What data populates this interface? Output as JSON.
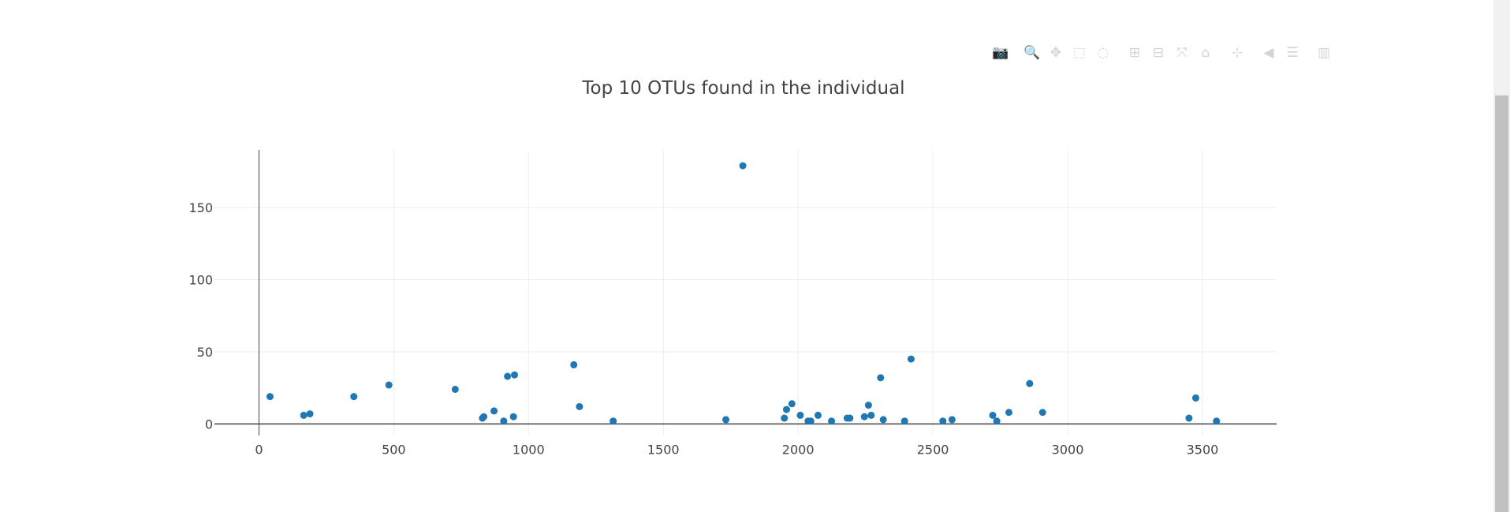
{
  "modebar": {
    "buttons": [
      {
        "icon": "camera-icon",
        "glyph": "📷"
      },
      {
        "icon": "zoom-icon",
        "glyph": "🔍"
      },
      {
        "icon": "pan-icon",
        "glyph": "✥"
      },
      {
        "icon": "box-select-icon",
        "glyph": "⬚"
      },
      {
        "icon": "lasso-select-icon",
        "glyph": "◌"
      },
      {
        "icon": "zoom-in-icon",
        "glyph": "⊞"
      },
      {
        "icon": "zoom-out-icon",
        "glyph": "⊟"
      },
      {
        "icon": "autoscale-icon",
        "glyph": "⤧"
      },
      {
        "icon": "home-icon",
        "glyph": "⌂"
      },
      {
        "icon": "spike-lines-icon",
        "glyph": "⊹"
      },
      {
        "icon": "hover-closest-icon",
        "glyph": "◀"
      },
      {
        "icon": "hover-compare-icon",
        "glyph": "☰"
      },
      {
        "icon": "plotly-logo-icon",
        "glyph": "▥"
      }
    ]
  },
  "colors": {
    "marker": "#1f77b4",
    "grid": "#eeeeee",
    "axis": "#444444",
    "text": "#444444"
  },
  "chart_data": {
    "type": "scatter",
    "title": "Top 10 OTUs found in the individual",
    "xlabel": "",
    "ylabel": "",
    "xlim": [
      -165,
      3775
    ],
    "ylim": [
      -8,
      190
    ],
    "xticks": [
      0,
      500,
      1000,
      1500,
      2000,
      2500,
      3000,
      3500
    ],
    "yticks": [
      0,
      50,
      100,
      150
    ],
    "grid": true,
    "series": [
      {
        "points": [
          [
            41,
            19
          ],
          [
            166,
            6
          ],
          [
            189,
            7
          ],
          [
            352,
            19
          ],
          [
            482,
            27
          ],
          [
            728,
            24
          ],
          [
            829,
            4
          ],
          [
            834,
            5
          ],
          [
            872,
            9
          ],
          [
            908,
            2
          ],
          [
            922,
            33
          ],
          [
            944,
            5
          ],
          [
            948,
            34
          ],
          [
            1168,
            41
          ],
          [
            1189,
            12
          ],
          [
            1314,
            2
          ],
          [
            1732,
            3
          ],
          [
            1795,
            179
          ],
          [
            1949,
            4
          ],
          [
            1957,
            10
          ],
          [
            1977,
            14
          ],
          [
            2008,
            6
          ],
          [
            2037,
            2
          ],
          [
            2047,
            2
          ],
          [
            2074,
            6
          ],
          [
            2124,
            2
          ],
          [
            2182,
            4
          ],
          [
            2192,
            4
          ],
          [
            2246,
            5
          ],
          [
            2261,
            13
          ],
          [
            2271,
            6
          ],
          [
            2306,
            32
          ],
          [
            2316,
            3
          ],
          [
            2395,
            2
          ],
          [
            2419,
            45
          ],
          [
            2537,
            2
          ],
          [
            2571,
            3
          ],
          [
            2722,
            6
          ],
          [
            2737,
            2
          ],
          [
            2782,
            8
          ],
          [
            2859,
            28
          ],
          [
            2907,
            8
          ],
          [
            3450,
            4
          ],
          [
            3475,
            18
          ],
          [
            3552,
            2
          ]
        ]
      }
    ]
  }
}
